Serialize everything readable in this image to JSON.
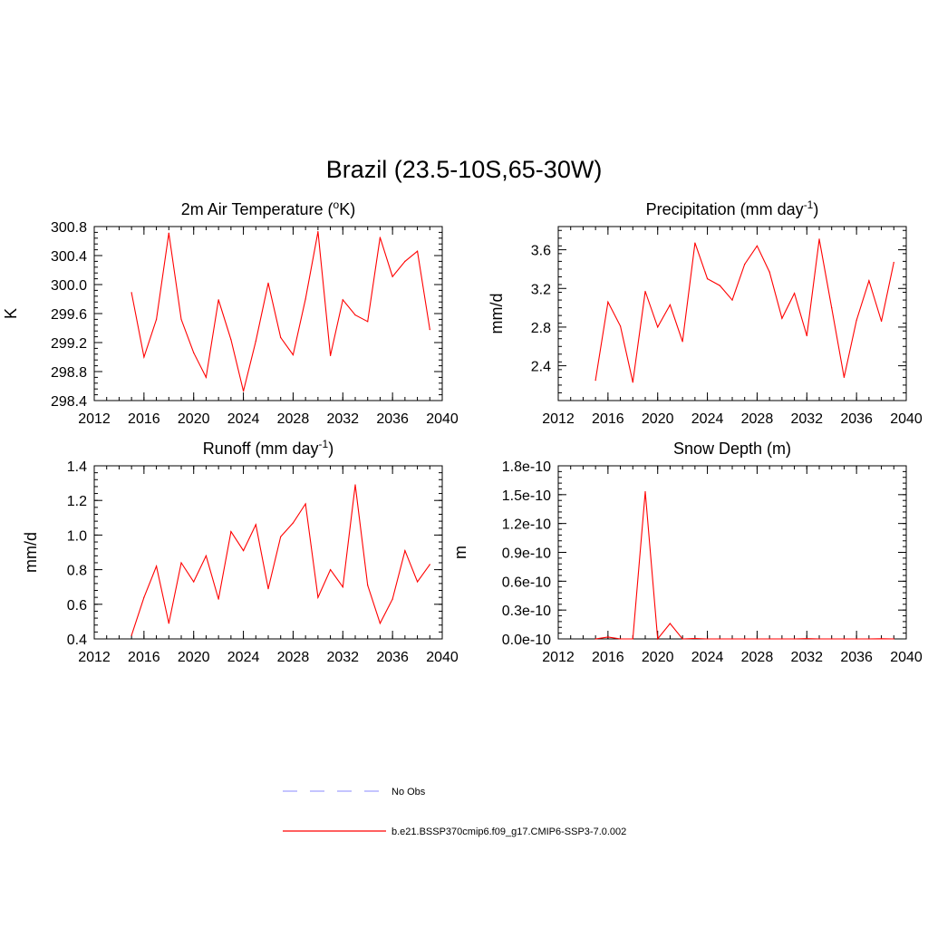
{
  "title": "Brazil (23.5-10S,65-30W)",
  "colors": {
    "model": "#ff0000",
    "obs": "#a0a0ff",
    "axis": "#000000"
  },
  "legend": {
    "obs_label": "No Obs",
    "model_label": "b.e21.BSSP370cmip6.f09_g17.CMIP6-SSP3-7.0.002"
  },
  "chart_data": [
    {
      "type": "line",
      "title_main": "2m Air Temperature (",
      "title_sup": "o",
      "title_rest": "K)",
      "ylabel": "K",
      "xlim": [
        2012,
        2040
      ],
      "x_ticks": [
        2012,
        2016,
        2020,
        2024,
        2028,
        2032,
        2036,
        2040
      ],
      "x_tick_labels": [
        "2012",
        "2016",
        "2020",
        "2024",
        "2028",
        "2032",
        "2036",
        "2040"
      ],
      "ylim": [
        298.4,
        300.8
      ],
      "y_ticks": [
        298.4,
        298.8,
        299.2,
        299.6,
        300.0,
        300.4,
        300.8
      ],
      "y_tick_labels": [
        "298.4",
        "298.8",
        "299.2",
        "299.6",
        "300.0",
        "300.4",
        "300.8"
      ],
      "y_minor_step": 0.08,
      "series": [
        {
          "name": "b.e21.BSSP370cmip6.f09_g17.CMIP6-SSP3-7.0.002",
          "x": [
            2015,
            2016,
            2017,
            2018,
            2019,
            2020,
            2021,
            2022,
            2023,
            2024,
            2025,
            2026,
            2027,
            2028,
            2029,
            2030,
            2031,
            2032,
            2033,
            2034,
            2035,
            2036,
            2037,
            2038,
            2039
          ],
          "values": [
            299.89,
            299.0,
            299.52,
            300.71,
            299.52,
            299.06,
            298.72,
            299.79,
            299.24,
            298.53,
            299.22,
            300.02,
            299.27,
            299.03,
            299.8,
            300.73,
            299.02,
            299.79,
            299.58,
            299.49,
            300.65,
            300.11,
            300.32,
            300.46,
            299.38
          ]
        }
      ]
    },
    {
      "type": "line",
      "title_main": "Precipitation (mm day",
      "title_sup": "-1",
      "title_rest": ")",
      "ylabel": "mm/d",
      "xlim": [
        2012,
        2040
      ],
      "x_ticks": [
        2012,
        2016,
        2020,
        2024,
        2028,
        2032,
        2036,
        2040
      ],
      "x_tick_labels": [
        "2012",
        "2016",
        "2020",
        "2024",
        "2028",
        "2032",
        "2036",
        "2040"
      ],
      "ylim": [
        2.04,
        3.84
      ],
      "y_ticks": [
        2.4,
        2.8,
        3.2,
        3.6
      ],
      "y_tick_labels": [
        "2.4",
        "2.8",
        "3.2",
        "3.6"
      ],
      "y_minor_step": 0.08,
      "series": [
        {
          "name": "b.e21.BSSP370cmip6.f09_g17.CMIP6-SSP3-7.0.002",
          "x": [
            2015,
            2016,
            2017,
            2018,
            2019,
            2020,
            2021,
            2022,
            2023,
            2024,
            2025,
            2026,
            2027,
            2028,
            2029,
            2030,
            2031,
            2032,
            2033,
            2034,
            2035,
            2036,
            2037,
            2038,
            2039
          ],
          "values": [
            2.25,
            3.06,
            2.81,
            2.23,
            3.17,
            2.8,
            3.03,
            2.65,
            3.67,
            3.3,
            3.23,
            3.08,
            3.45,
            3.64,
            3.37,
            2.89,
            3.15,
            2.71,
            3.71,
            3.0,
            2.28,
            2.87,
            3.28,
            2.86,
            3.47
          ]
        }
      ]
    },
    {
      "type": "line",
      "title_main": "Runoff (mm day",
      "title_sup": "-1",
      "title_rest": ")",
      "ylabel": "mm/d",
      "xlim": [
        2012,
        2040
      ],
      "x_ticks": [
        2012,
        2016,
        2020,
        2024,
        2028,
        2032,
        2036,
        2040
      ],
      "x_tick_labels": [
        "2012",
        "2016",
        "2020",
        "2024",
        "2028",
        "2032",
        "2036",
        "2040"
      ],
      "ylim": [
        0.4,
        1.4
      ],
      "y_ticks": [
        0.4,
        0.6,
        0.8,
        1.0,
        1.2,
        1.4
      ],
      "y_tick_labels": [
        "0.4",
        "0.6",
        "0.8",
        "1.0",
        "1.2",
        "1.4"
      ],
      "y_minor_step": 0.04,
      "series": [
        {
          "name": "b.e21.BSSP370cmip6.f09_g17.CMIP6-SSP3-7.0.002",
          "x": [
            2015,
            2016,
            2017,
            2018,
            2019,
            2020,
            2021,
            2022,
            2023,
            2024,
            2025,
            2026,
            2027,
            2028,
            2029,
            2030,
            2031,
            2032,
            2033,
            2034,
            2035,
            2036,
            2037,
            2038,
            2039
          ],
          "values": [
            0.42,
            0.64,
            0.82,
            0.49,
            0.84,
            0.73,
            0.88,
            0.63,
            1.02,
            0.91,
            1.06,
            0.69,
            0.99,
            1.07,
            1.18,
            0.64,
            0.8,
            0.7,
            1.29,
            0.71,
            0.49,
            0.63,
            0.91,
            0.73,
            0.83
          ]
        }
      ]
    },
    {
      "type": "line",
      "title_main": "Snow Depth (m)",
      "title_sup": "",
      "title_rest": "",
      "ylabel": "m",
      "xlim": [
        2012,
        2040
      ],
      "x_ticks": [
        2012,
        2016,
        2020,
        2024,
        2028,
        2032,
        2036,
        2040
      ],
      "x_tick_labels": [
        "2012",
        "2016",
        "2020",
        "2024",
        "2028",
        "2032",
        "2036",
        "2040"
      ],
      "ylim": [
        0,
        1.8e-10
      ],
      "y_ticks": [
        0,
        3e-11,
        6e-11,
        9e-11,
        1.2e-10,
        1.5e-10,
        1.8e-10
      ],
      "y_tick_labels": [
        "0.0e-10",
        "0.3e-10",
        "0.6e-10",
        "0.9e-10",
        "1.2e-10",
        "1.5e-10",
        "1.8e-10"
      ],
      "y_minor_step": 6e-12,
      "series": [
        {
          "name": "b.e21.BSSP370cmip6.f09_g17.CMIP6-SSP3-7.0.002",
          "x": [
            2015,
            2016,
            2017,
            2018,
            2019,
            2020,
            2021,
            2022,
            2023,
            2024,
            2025,
            2026,
            2027,
            2028,
            2029,
            2030,
            2031,
            2032,
            2033,
            2034,
            2035,
            2036,
            2037,
            2038,
            2039
          ],
          "values": [
            0,
            2e-12,
            0,
            0,
            1.53e-10,
            0,
            1.6e-11,
            0,
            5e-13,
            0,
            0,
            0,
            0,
            0,
            0,
            0,
            0,
            3e-13,
            0,
            0,
            0,
            0,
            0,
            2e-13,
            0
          ]
        }
      ]
    }
  ]
}
